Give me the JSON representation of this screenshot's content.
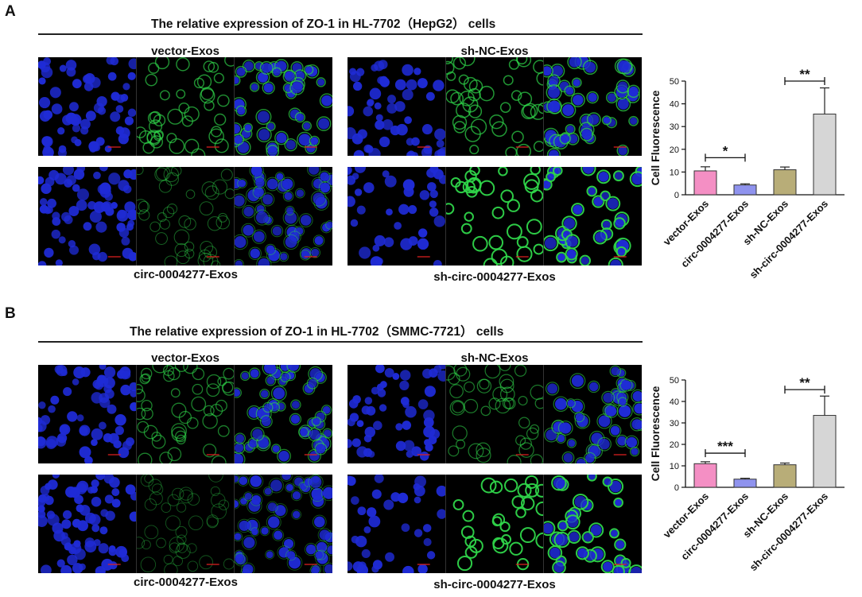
{
  "panels": [
    {
      "letter": "A",
      "title": "The relative expression of  ZO-1 in HL-7702（HepG2） cells",
      "groups": {
        "top_left": "vector-Exos",
        "top_right": "sh-NC-Exos",
        "bottom_left": "circ-0004277-Exos",
        "bottom_right": "sh-circ-0004277-Exos"
      }
    },
    {
      "letter": "B",
      "title": "The relative expression of  ZO-1 in HL-7702（SMMC-7721） cells",
      "groups": {
        "top_left": "vector-Exos",
        "top_right": "sh-NC-Exos",
        "bottom_left": "circ-0004277-Exos",
        "bottom_right": "sh-circ-0004277-Exos"
      }
    }
  ],
  "colors": {
    "nucleus_blue": "#1f2bd6",
    "membrane_green": "#2fd64a",
    "bar_colors": [
      "#f48fc4",
      "#8f93ee",
      "#b8ad78",
      "#d6d6d6"
    ]
  },
  "chart_data": [
    {
      "type": "bar",
      "categories": [
        "vector-Exos",
        "circ-0004277-Exos",
        "sh-NC-Exos",
        "sh-circ-0004277-Exos"
      ],
      "values": [
        10.5,
        4.3,
        11.0,
        35.5
      ],
      "errors": [
        1.8,
        0.5,
        1.2,
        11.5
      ],
      "ylabel": "Cell Fluorescence",
      "ylim": [
        0,
        50
      ],
      "yticks": [
        "0",
        "10",
        "20",
        "30",
        "40",
        "50"
      ],
      "significance": [
        {
          "from": 0,
          "to": 1,
          "label": "*"
        },
        {
          "from": 2,
          "to": 3,
          "label": "**"
        }
      ]
    },
    {
      "type": "bar",
      "categories": [
        "vector-Exos",
        "circ-0004277-Exos",
        "sh-NC-Exos",
        "sh-circ-0004277-Exos"
      ],
      "values": [
        11.0,
        3.8,
        10.5,
        33.5
      ],
      "errors": [
        0.9,
        0.4,
        0.8,
        9.0
      ],
      "ylabel": "Cell Fluorescence",
      "ylim": [
        0,
        50
      ],
      "yticks": [
        "0",
        "10",
        "20",
        "30",
        "40",
        "50"
      ],
      "significance": [
        {
          "from": 0,
          "to": 1,
          "label": "***"
        },
        {
          "from": 2,
          "to": 3,
          "label": "**"
        }
      ]
    }
  ]
}
